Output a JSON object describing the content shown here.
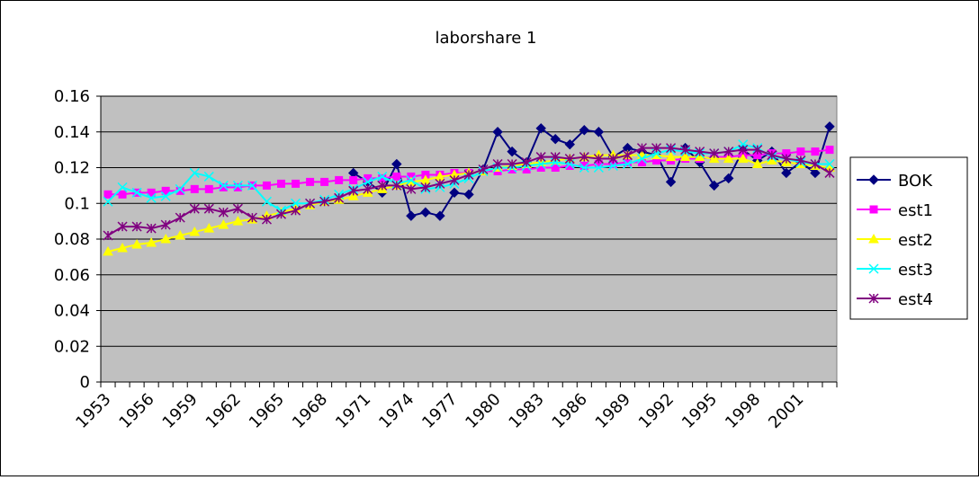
{
  "chart_data": {
    "type": "line",
    "title": "laborshare 1",
    "categories": [
      "1953",
      null,
      null,
      "1956",
      null,
      null,
      "1959",
      null,
      null,
      "1962",
      null,
      null,
      "1965",
      null,
      null,
      "1968",
      null,
      null,
      "1971",
      null,
      null,
      "1974",
      null,
      null,
      "1977",
      null,
      null,
      "1980",
      null,
      null,
      "1983",
      null,
      null,
      "1986",
      null,
      null,
      "1989",
      null,
      null,
      "1992",
      null,
      null,
      "1995",
      null,
      null,
      "1998",
      null,
      null,
      "2001",
      null,
      null
    ],
    "ylim": [
      0,
      0.16
    ],
    "yticks": [
      0,
      0.02,
      0.04,
      0.06,
      0.08,
      0.1,
      0.12,
      0.14,
      0.16
    ],
    "grid": true,
    "legend": "right",
    "series": [
      {
        "name": "BOK",
        "color": "#000080",
        "marker": "diamond",
        "values": [
          null,
          null,
          null,
          null,
          null,
          null,
          null,
          null,
          null,
          null,
          null,
          null,
          null,
          null,
          null,
          null,
          null,
          0.117,
          0.112,
          0.106,
          0.122,
          0.093,
          0.095,
          0.093,
          0.106,
          0.105,
          0.119,
          0.14,
          0.129,
          0.123,
          0.142,
          0.136,
          0.133,
          0.141,
          0.14,
          0.126,
          0.131,
          0.129,
          0.127,
          0.112,
          0.131,
          0.123,
          0.11,
          0.114,
          0.13,
          0.124,
          0.129,
          0.117,
          0.123,
          0.117,
          0.143
        ]
      },
      {
        "name": "est1",
        "color": "#ff00ff",
        "marker": "square",
        "values": [
          0.105,
          0.105,
          0.106,
          0.106,
          0.107,
          0.107,
          0.108,
          0.108,
          0.109,
          0.109,
          0.11,
          0.11,
          0.111,
          0.111,
          0.112,
          0.112,
          0.113,
          0.113,
          0.114,
          0.114,
          0.115,
          0.115,
          0.116,
          0.116,
          0.117,
          0.117,
          0.118,
          0.118,
          0.119,
          0.119,
          0.12,
          0.12,
          0.121,
          0.121,
          0.122,
          0.122,
          0.123,
          0.123,
          0.124,
          0.124,
          0.125,
          0.125,
          0.126,
          0.126,
          0.127,
          0.127,
          0.128,
          0.128,
          0.129,
          0.129,
          0.13
        ]
      },
      {
        "name": "est2",
        "color": "#ffff00",
        "marker": "triangle",
        "values": [
          0.073,
          0.075,
          0.077,
          0.078,
          0.08,
          0.082,
          0.084,
          0.086,
          0.088,
          0.09,
          0.091,
          0.093,
          0.095,
          0.097,
          0.099,
          0.101,
          0.102,
          0.104,
          0.106,
          0.108,
          0.11,
          0.112,
          0.113,
          0.115,
          0.116,
          0.117,
          0.118,
          0.12,
          0.121,
          0.122,
          0.123,
          0.124,
          0.125,
          0.126,
          0.127,
          0.127,
          0.127,
          0.127,
          0.127,
          0.126,
          0.126,
          0.126,
          0.125,
          0.125,
          0.125,
          0.122,
          0.124,
          0.123,
          0.122,
          0.121,
          0.12
        ]
      },
      {
        "name": "est3",
        "color": "#00ffff",
        "marker": "x",
        "values": [
          0.101,
          0.109,
          0.106,
          0.103,
          0.104,
          0.108,
          0.117,
          0.115,
          0.11,
          0.11,
          0.11,
          0.101,
          0.096,
          0.1,
          0.1,
          0.102,
          0.105,
          0.108,
          0.112,
          0.115,
          0.111,
          0.113,
          0.108,
          0.109,
          0.111,
          0.114,
          0.118,
          0.12,
          0.12,
          0.121,
          0.122,
          0.123,
          0.122,
          0.12,
          0.12,
          0.121,
          0.122,
          0.125,
          0.128,
          0.13,
          0.129,
          0.128,
          0.128,
          0.129,
          0.133,
          0.131,
          0.126,
          0.125,
          0.123,
          0.122,
          0.122
        ]
      },
      {
        "name": "est4",
        "color": "#800080",
        "marker": "star",
        "values": [
          0.082,
          0.087,
          0.087,
          0.086,
          0.088,
          0.092,
          0.097,
          0.097,
          0.095,
          0.097,
          0.092,
          0.091,
          0.094,
          0.096,
          0.1,
          0.101,
          0.103,
          0.107,
          0.108,
          0.11,
          0.11,
          0.108,
          0.109,
          0.111,
          0.113,
          0.116,
          0.119,
          0.122,
          0.122,
          0.123,
          0.126,
          0.126,
          0.125,
          0.126,
          0.125,
          0.125,
          0.127,
          0.131,
          0.131,
          0.131,
          0.13,
          0.129,
          0.128,
          0.129,
          0.13,
          0.13,
          0.127,
          0.125,
          0.124,
          0.122,
          0.117
        ]
      }
    ]
  }
}
